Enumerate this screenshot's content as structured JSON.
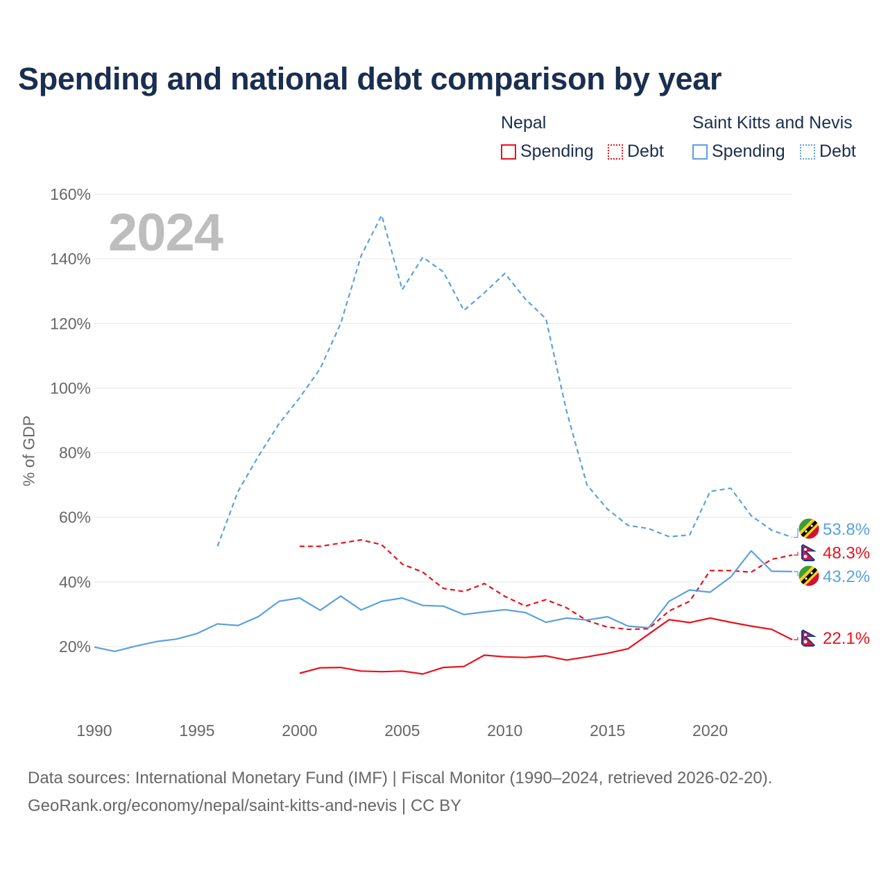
{
  "title": "Spending and national debt comparison by year",
  "legend": {
    "groups": [
      {
        "country": "Nepal",
        "items": [
          "Spending",
          "Debt"
        ],
        "color": "#e8111a"
      },
      {
        "country": "Saint Kitts and Nevis",
        "items": [
          "Spending",
          "Debt"
        ],
        "color": "#5aa0e0"
      }
    ]
  },
  "current_year": "2024",
  "chart_data": {
    "type": "line",
    "title": "Spending and national debt comparison by year",
    "xlabel": "",
    "ylabel": "% of GDP",
    "xlim": [
      1990,
      2024
    ],
    "ylim": [
      0,
      160
    ],
    "x_ticks": [
      "1990",
      "1995",
      "2000",
      "2005",
      "2010",
      "2015",
      "2020"
    ],
    "y_ticks": [
      "20%",
      "40%",
      "60%",
      "80%",
      "100%",
      "120%",
      "140%",
      "160%"
    ],
    "series": [
      {
        "name": "Saint Kitts and Nevis Debt",
        "country": "Saint Kitts and Nevis",
        "metric": "Debt",
        "color": "#5aa0e0",
        "dashed": true,
        "end_label": "53.8%",
        "x": [
          1996,
          1997,
          1998,
          1999,
          2000,
          2001,
          2002,
          2003,
          2004,
          2005,
          2006,
          2007,
          2008,
          2009,
          2010,
          2011,
          2012,
          2013,
          2014,
          2015,
          2016,
          2017,
          2018,
          2019,
          2020,
          2021,
          2022,
          2023,
          2024
        ],
        "values": [
          51,
          68,
          79,
          89,
          97,
          106,
          120,
          141,
          153.5,
          130.5,
          140.5,
          136,
          124,
          129.5,
          135.5,
          127.5,
          121.5,
          93,
          70,
          62.5,
          57.5,
          56.5,
          54,
          54.5,
          68,
          69,
          60.5,
          56,
          53.8
        ]
      },
      {
        "name": "Nepal Debt",
        "country": "Nepal",
        "metric": "Debt",
        "color": "#e8111a",
        "dashed": true,
        "end_label": "48.3%",
        "x": [
          2000,
          2001,
          2002,
          2003,
          2004,
          2005,
          2006,
          2007,
          2008,
          2009,
          2010,
          2011,
          2012,
          2013,
          2014,
          2015,
          2016,
          2017,
          2018,
          2019,
          2020,
          2021,
          2022,
          2023,
          2024
        ],
        "values": [
          51,
          51,
          52,
          53,
          51.5,
          45.5,
          43,
          38,
          37,
          39.5,
          35.5,
          32.5,
          34.5,
          32,
          28,
          26,
          25.3,
          25.5,
          31,
          34,
          43.5,
          43.5,
          43,
          47,
          48.3
        ]
      },
      {
        "name": "Saint Kitts and Nevis Spending",
        "country": "Saint Kitts and Nevis",
        "metric": "Spending",
        "color": "#5aa0e0",
        "dashed": false,
        "end_label": "43.2%",
        "x": [
          1990,
          1991,
          1992,
          1993,
          1994,
          1995,
          1996,
          1997,
          1998,
          1999,
          2000,
          2001,
          2002,
          2003,
          2004,
          2005,
          2006,
          2007,
          2008,
          2009,
          2010,
          2011,
          2012,
          2013,
          2014,
          2015,
          2016,
          2017,
          2018,
          2019,
          2020,
          2021,
          2022,
          2023,
          2024
        ],
        "values": [
          19.8,
          18.5,
          20.1,
          21.5,
          22.3,
          24,
          27,
          26.5,
          29.3,
          34,
          35,
          31.2,
          35.6,
          31.3,
          34,
          35,
          32.7,
          32.5,
          29.9,
          30.7,
          31.4,
          30.5,
          27.5,
          28.8,
          28.2,
          29.2,
          26.3,
          25.8,
          34,
          37.5,
          36.8,
          41.5,
          49.6,
          43.3,
          43.2
        ]
      },
      {
        "name": "Nepal Spending",
        "country": "Nepal",
        "metric": "Spending",
        "color": "#e8111a",
        "dashed": false,
        "end_label": "22.1%",
        "x": [
          2000,
          2001,
          2002,
          2003,
          2004,
          2005,
          2006,
          2007,
          2008,
          2009,
          2010,
          2011,
          2012,
          2013,
          2014,
          2015,
          2016,
          2017,
          2018,
          2019,
          2020,
          2021,
          2022,
          2023,
          2024
        ],
        "values": [
          11.7,
          13.4,
          13.5,
          12.4,
          12.2,
          12.4,
          11.5,
          13.5,
          13.8,
          17.3,
          16.8,
          16.6,
          17.1,
          15.8,
          16.8,
          17.9,
          19.3,
          23.8,
          28.3,
          27.4,
          28.8,
          27.5,
          26.3,
          25.3,
          22.1
        ]
      }
    ]
  },
  "footer": {
    "line1": "Data sources: International Monetary Fund (IMF) | Fiscal Monitor (1990–2024, retrieved 2026-02-20).",
    "line2": "GeoRank.org/economy/nepal/saint-kitts-and-nevis | CC BY"
  }
}
